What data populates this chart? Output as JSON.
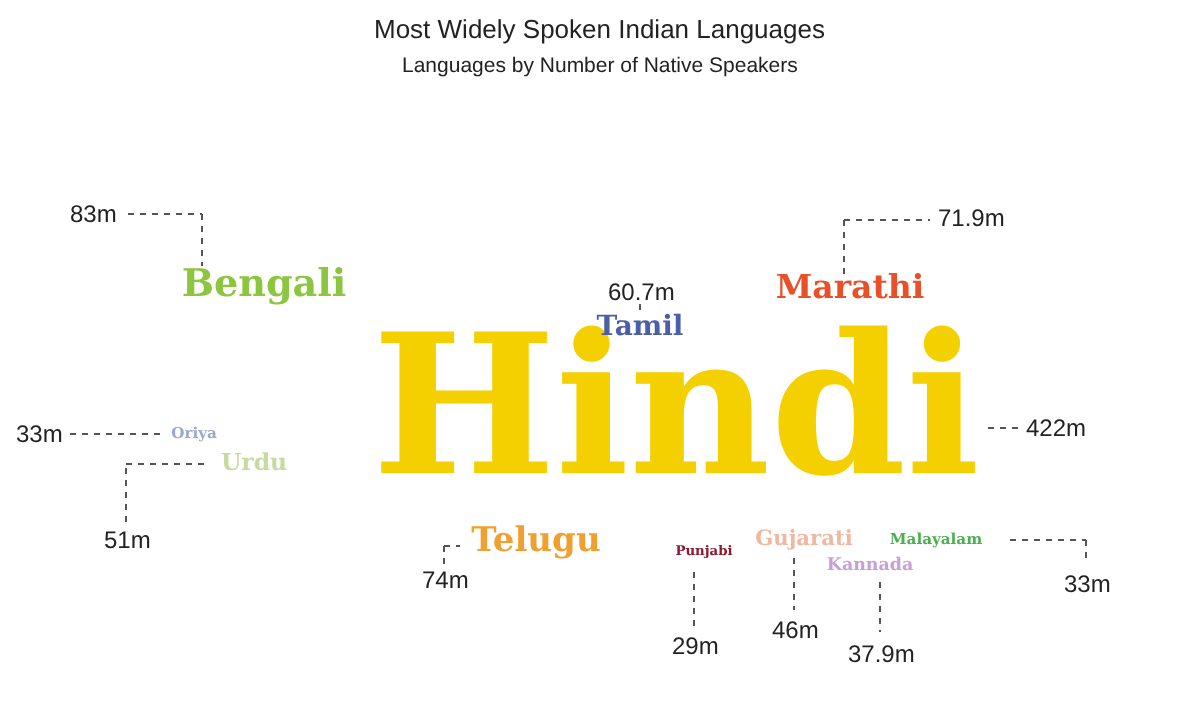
{
  "chart_data": {
    "type": "other",
    "title": "Most Widely Spoken Indian Languages",
    "subtitle": "Languages by Number of Native Speakers",
    "categories": [
      "Hindi",
      "Bengali",
      "Tamil",
      "Marathi",
      "Oriya",
      "Urdu",
      "Telugu",
      "Punjabi",
      "Gujarati",
      "Malayalam",
      "Kannada"
    ],
    "values": [
      422,
      83,
      60.7,
      71.9,
      33,
      51,
      74,
      29,
      46,
      33,
      37.9
    ],
    "value_labels": [
      "422m",
      "83m",
      "60.7m",
      "71.9m",
      "33m",
      "51m",
      "74m",
      "29m",
      "46m",
      "33m",
      "37.9m"
    ],
    "colors": [
      "#f5d000",
      "#8cc63f",
      "#4a5fa8",
      "#e8502a",
      "#9aa6d6",
      "#c6dba0",
      "#f0a030",
      "#8b1a2e",
      "#f0b8a0",
      "#4caf50",
      "#c8a0d8"
    ]
  }
}
